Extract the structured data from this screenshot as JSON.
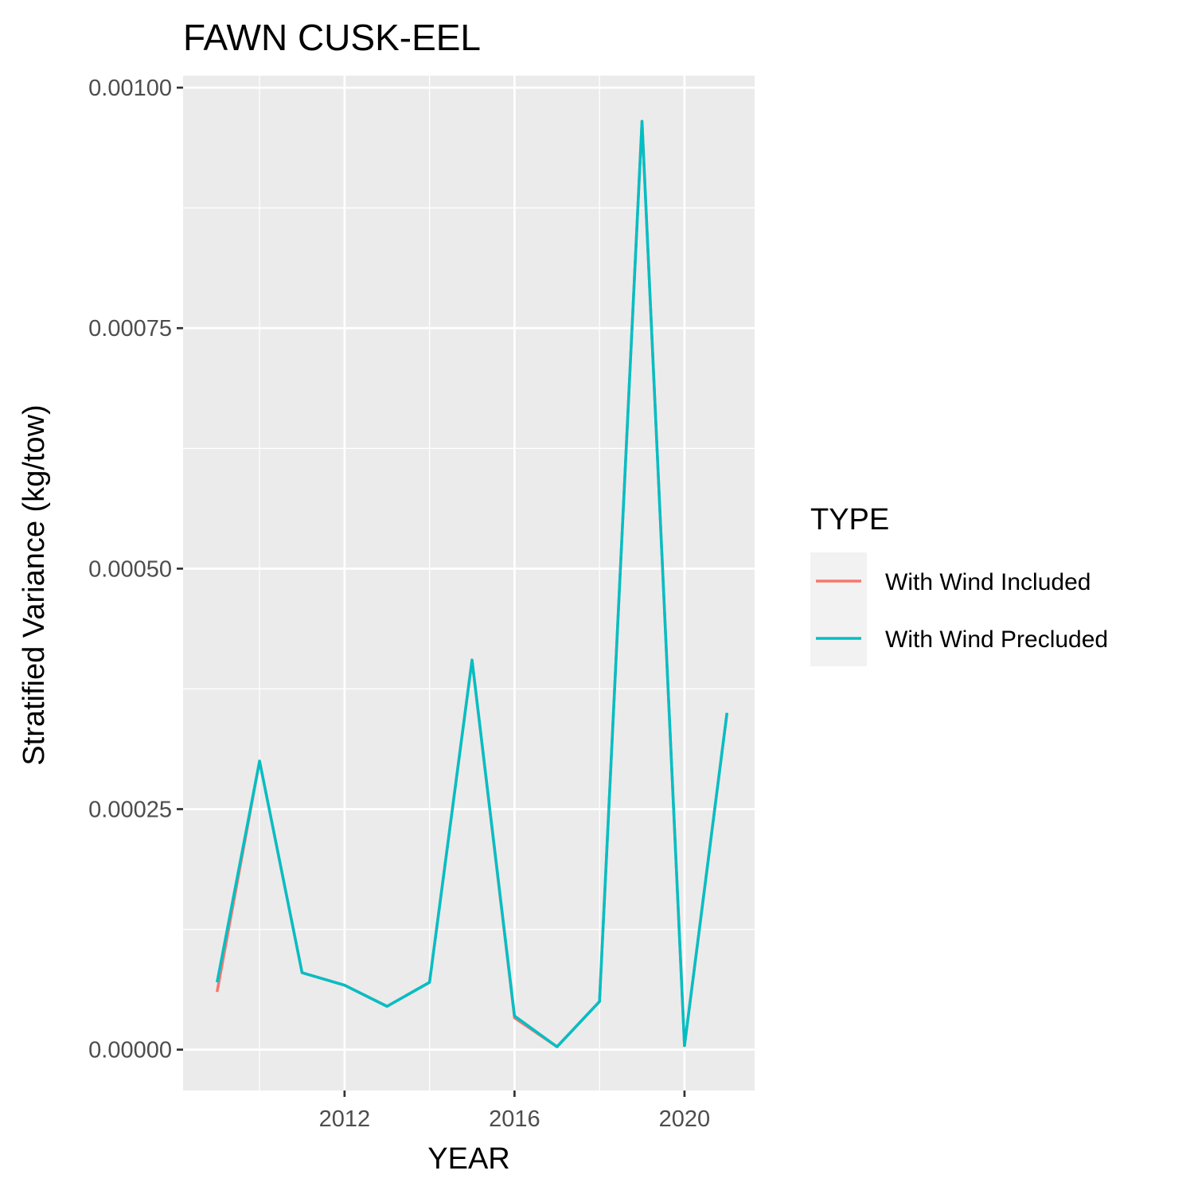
{
  "chart_data": {
    "type": "line",
    "title": "FAWN CUSK-EEL",
    "xlabel": "YEAR",
    "ylabel": "Stratified Variance (kg/tow)",
    "x": [
      2009,
      2010,
      2011,
      2012,
      2013,
      2014,
      2015,
      2016,
      2017,
      2018,
      2019,
      2020,
      2021
    ],
    "xlim": [
      2008.2,
      2021.65
    ],
    "ylim": [
      -4.25e-05,
      0.0010125
    ],
    "x_ticks": [
      2012,
      2016,
      2020
    ],
    "x_tick_labels": [
      "2012",
      "2016",
      "2020"
    ],
    "y_ticks": [
      0,
      0.00025,
      0.0005,
      0.00075,
      0.001
    ],
    "y_tick_labels": [
      "0.00000",
      "0.00025",
      "0.00050",
      "0.00075",
      "0.00100"
    ],
    "grid": true,
    "legend": {
      "title": "TYPE",
      "placement": "right"
    },
    "series": [
      {
        "name": "With Wind Included",
        "color": "#F8766D",
        "values": [
          6e-05,
          0.0003,
          8e-05,
          6.7e-05,
          4.5e-05,
          7e-05,
          0.000405,
          3.3e-05,
          3e-06,
          5e-05,
          0.000965,
          4e-06,
          0.00035
        ]
      },
      {
        "name": "With Wind Precluded",
        "color": "#00BFC4",
        "values": [
          7e-05,
          0.0003,
          8e-05,
          6.7e-05,
          4.5e-05,
          7e-05,
          0.000405,
          3.5e-05,
          3e-06,
          5e-05,
          0.000965,
          4e-06,
          0.00035
        ]
      }
    ]
  }
}
